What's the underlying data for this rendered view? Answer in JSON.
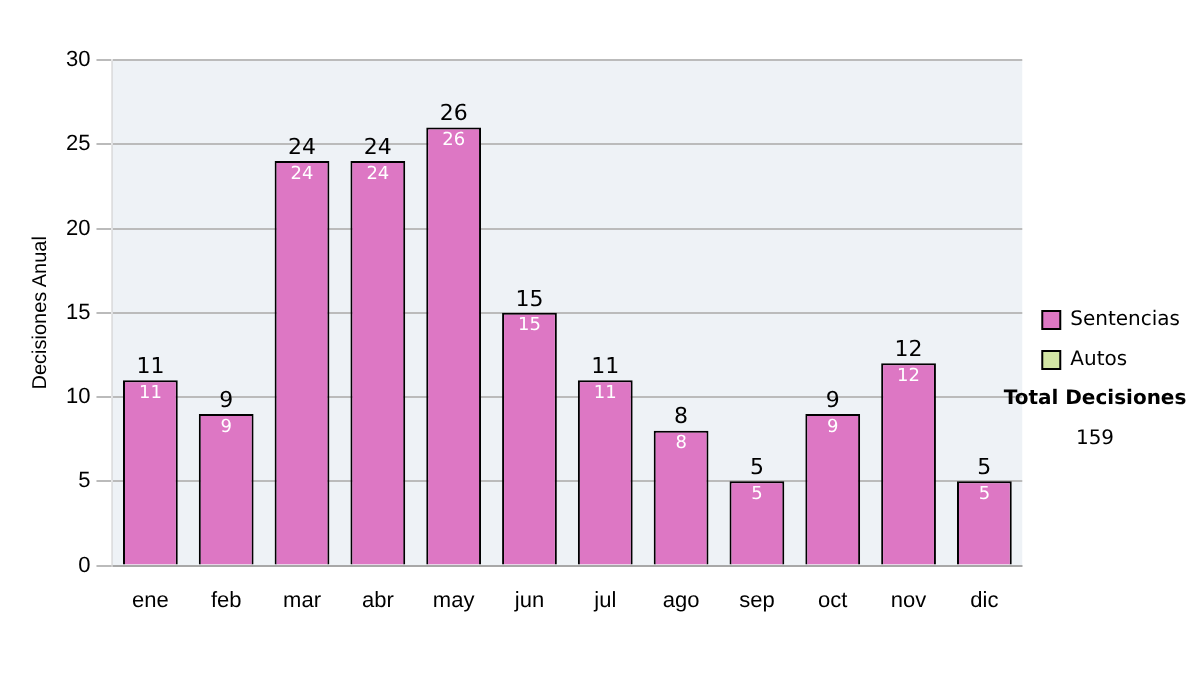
{
  "chart_data": {
    "type": "bar",
    "ylabel": "Decisiones Anual",
    "categories": [
      "ene",
      "feb",
      "mar",
      "abr",
      "may",
      "jun",
      "jul",
      "ago",
      "sep",
      "oct",
      "nov",
      "dic"
    ],
    "series": [
      {
        "name": "Sentencias",
        "color": "#dd77c4",
        "values": [
          11,
          9,
          24,
          24,
          26,
          15,
          11,
          8,
          5,
          9,
          12,
          5
        ],
        "value_labels": [
          "11",
          "9",
          "24",
          "24",
          "26",
          "15",
          "11",
          "8",
          "5",
          "9",
          "12",
          "5"
        ]
      },
      {
        "name": "Autos",
        "color": "#d3e6a4",
        "values": [
          0,
          0,
          0,
          0,
          0,
          0,
          0,
          0,
          0,
          0,
          0,
          0
        ]
      }
    ],
    "stacked": true,
    "totals": [
      "11",
      "9",
      "24",
      "24",
      "26",
      "15",
      "11",
      "8",
      "5",
      "9",
      "12",
      "5"
    ],
    "ylim": [
      0,
      30
    ],
    "yticks": [
      0,
      5,
      10,
      15,
      20,
      25,
      30
    ],
    "grid": "y",
    "legend": "right",
    "annotations": [
      "Total Decisiones",
      "159"
    ]
  }
}
